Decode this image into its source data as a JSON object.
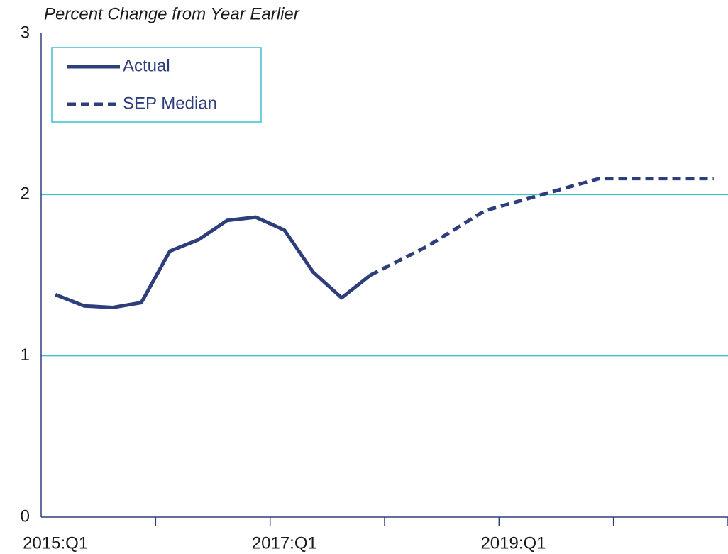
{
  "chart_data": {
    "type": "line",
    "title": "Percent Change from Year Earlier",
    "categories": [
      "2015:Q1",
      null,
      null,
      null,
      null,
      null,
      null,
      null,
      "2017:Q1",
      null,
      null,
      null,
      null,
      null,
      null,
      null,
      "2019:Q1",
      null,
      null,
      null,
      null,
      null,
      null,
      null
    ],
    "series": [
      {
        "name": "Actual",
        "color": "#2e3e7a",
        "dashed": false,
        "values": [
          1.38,
          1.31,
          1.3,
          1.33,
          1.65,
          1.72,
          1.84,
          1.86,
          1.78,
          1.52,
          1.36,
          1.5,
          null,
          null,
          null,
          null,
          null,
          null,
          null,
          null,
          null,
          null,
          null,
          null
        ]
      },
      {
        "name": "SEP Median",
        "color": "#2e3e7a",
        "dashed": true,
        "values": [
          null,
          null,
          null,
          null,
          null,
          null,
          null,
          null,
          null,
          null,
          null,
          1.5,
          1.59,
          1.68,
          1.79,
          1.9,
          1.95,
          2.0,
          2.05,
          2.1,
          2.1,
          2.1,
          2.1,
          2.1
        ]
      }
    ],
    "ylim": [
      0,
      3
    ],
    "yticks": [
      0,
      1,
      2,
      3
    ],
    "grid": true,
    "grid_color": "#3fbfcf",
    "legend": "upper left"
  }
}
